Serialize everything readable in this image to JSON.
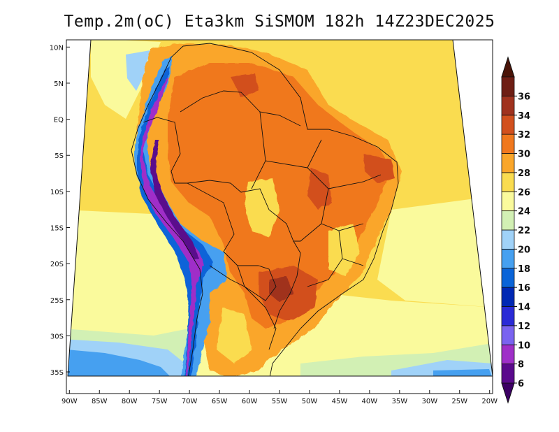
{
  "title": "Temp.2m(oC) Eta3km SiSMOM 182h 14Z23DEC2025",
  "map": {
    "lon_labels": [
      "90W",
      "85W",
      "80W",
      "75W",
      "70W",
      "65W",
      "60W",
      "55W",
      "50W",
      "45W",
      "40W",
      "35W",
      "30W",
      "25W",
      "20W"
    ],
    "lat_labels": [
      "10N",
      "5N",
      "EQ",
      "5S",
      "10S",
      "15S",
      "20S",
      "25S",
      "30S",
      "35S"
    ],
    "lon_range": [
      -90.5,
      -19.5
    ],
    "lat_range": [
      -38.0,
      11.0
    ]
  },
  "colorbar": {
    "labels": [
      "6",
      "8",
      "10",
      "12",
      "14",
      "16",
      "18",
      "20",
      "22",
      "24",
      "26",
      "28",
      "30",
      "32",
      "34",
      "36"
    ],
    "colors": [
      "#5a0a8c",
      "#9f2fc8",
      "#7a63f0",
      "#2a2ad6",
      "#0028b4",
      "#0a64d8",
      "#46a0f0",
      "#a0d2f8",
      "#d2f0b4",
      "#fafa9c",
      "#fadc50",
      "#faa62a",
      "#f0781e",
      "#d2501e",
      "#a0321e",
      "#6e1e14"
    ],
    "under_color": "#3c0064",
    "over_color": "#4a1408"
  }
}
